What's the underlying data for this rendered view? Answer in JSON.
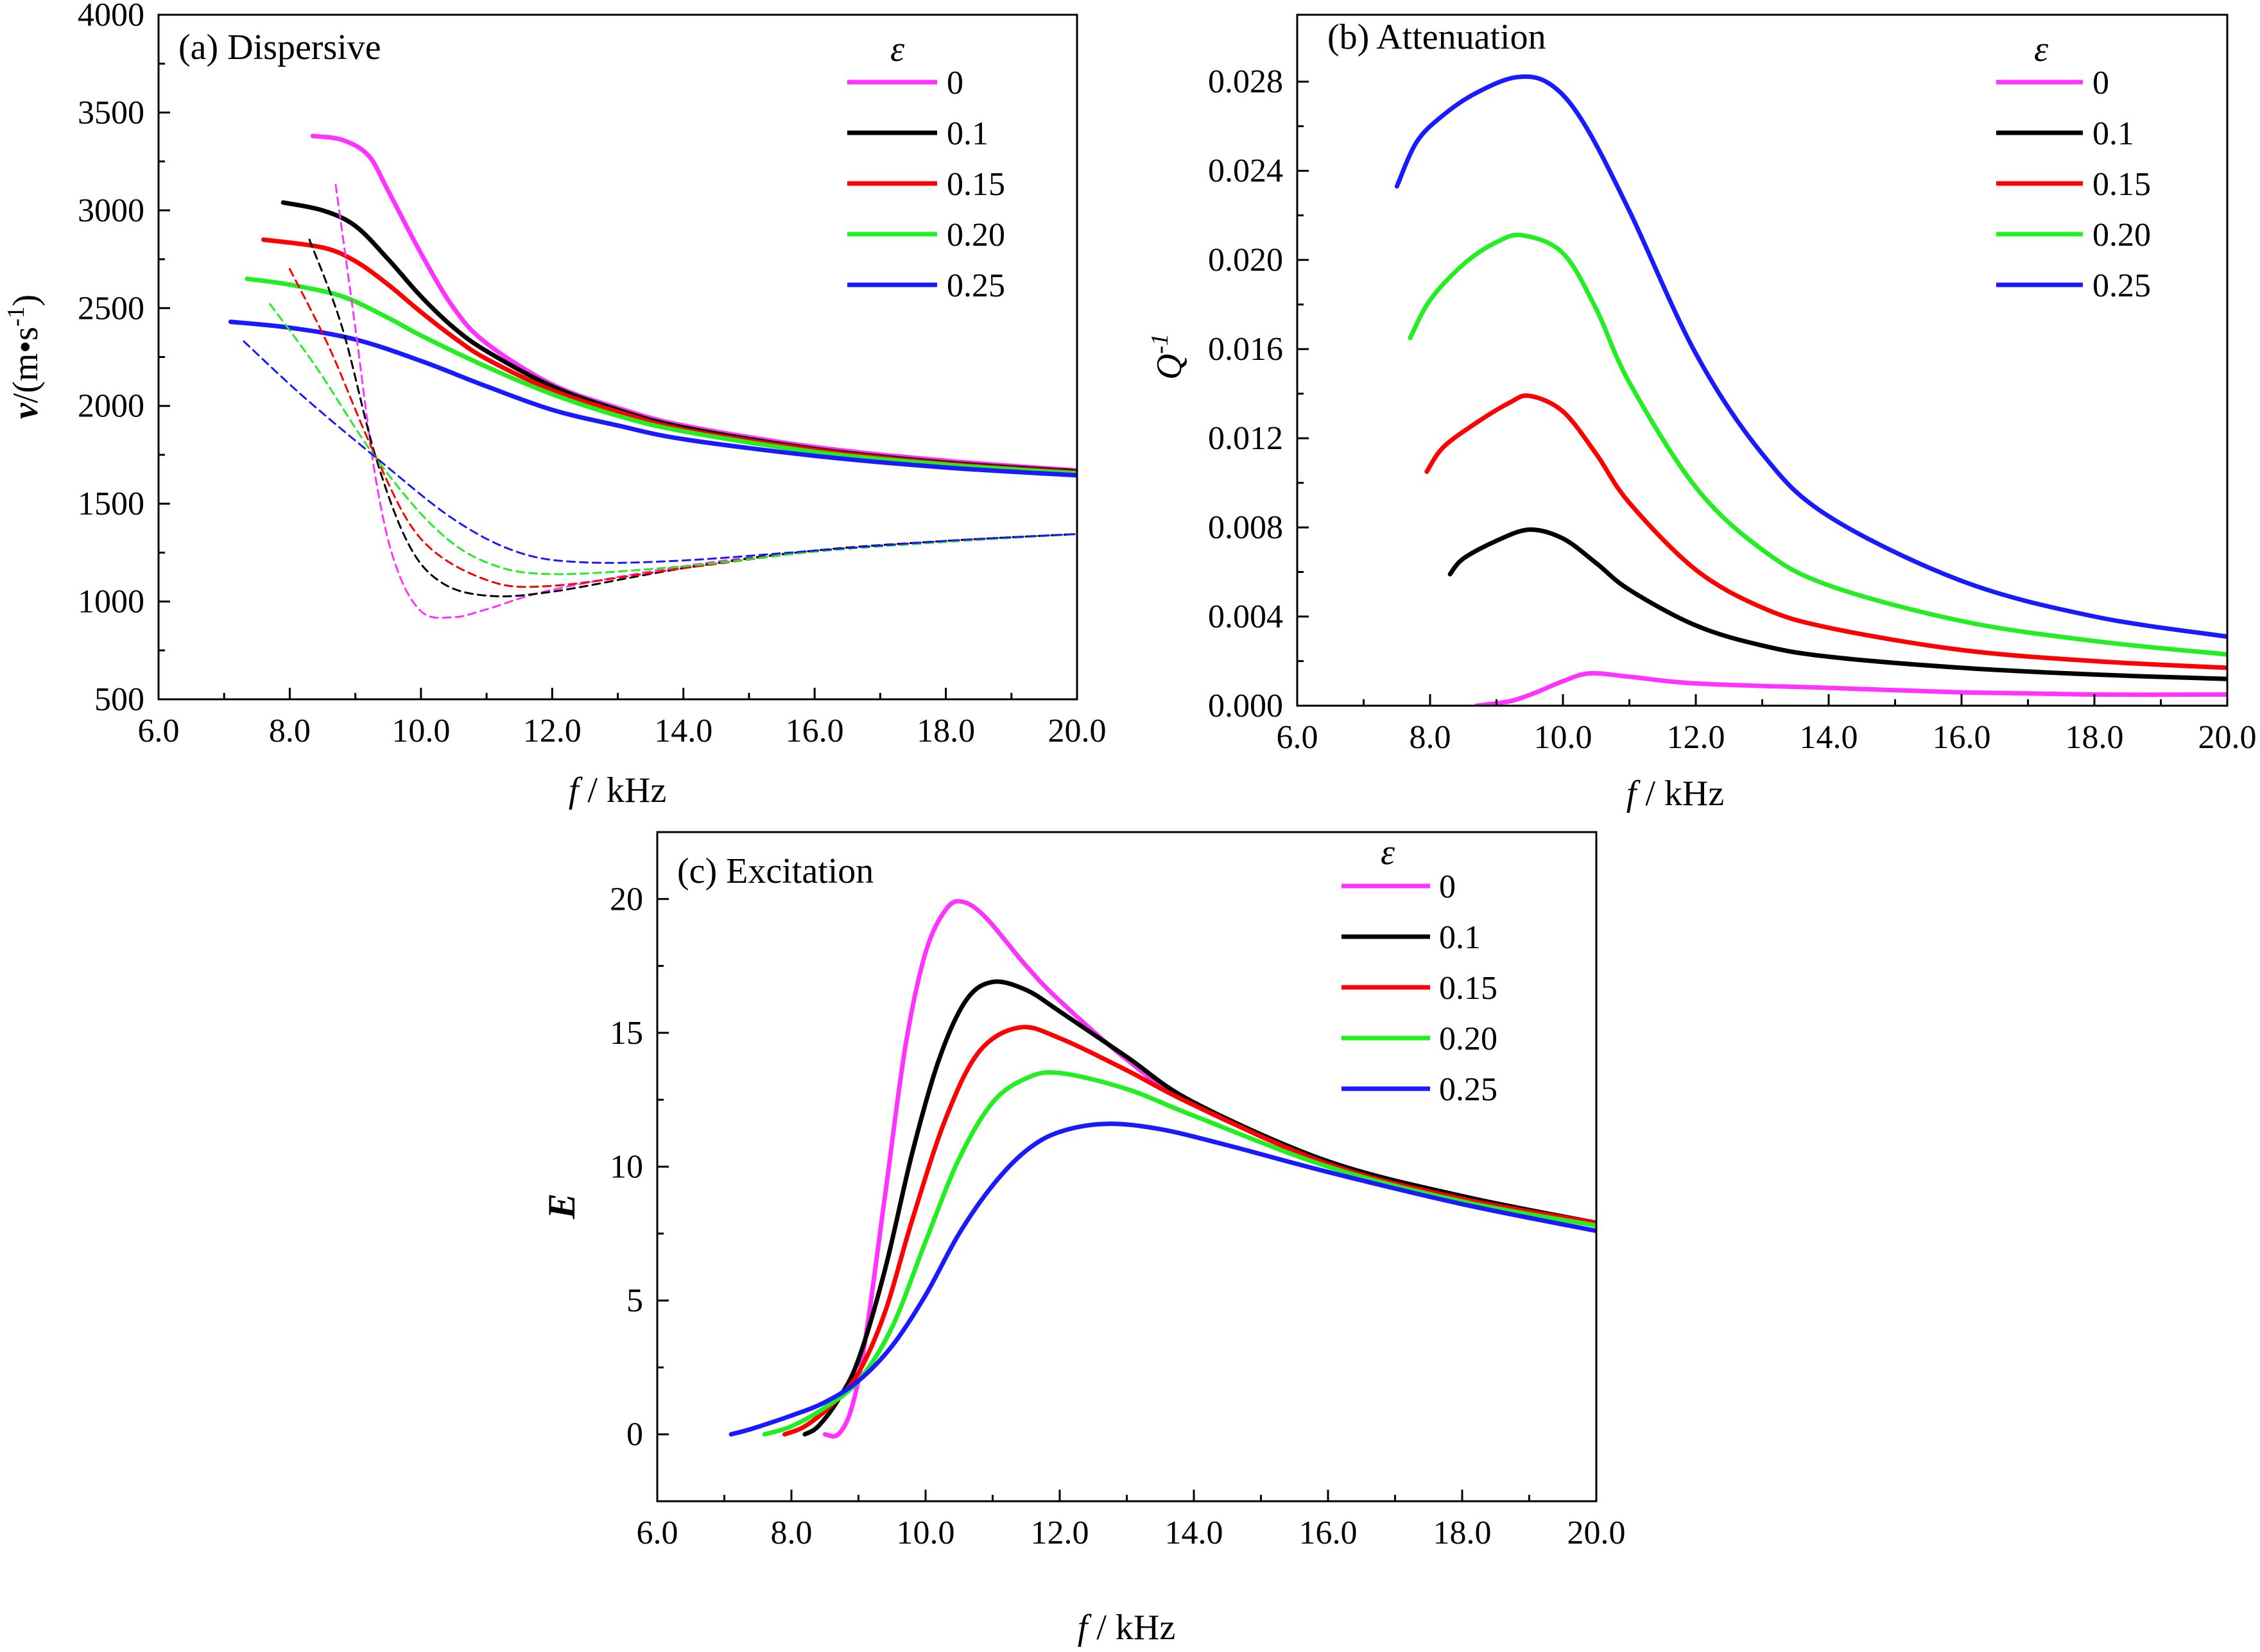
{
  "legend_title": "ε",
  "colors": {
    "0": "#ff33ff",
    "0.1": "#000000",
    "0.15": "#ff0000",
    "0.20": "#22ee22",
    "0.25": "#1a1aff"
  },
  "chart_data": [
    {
      "id": "a",
      "type": "line",
      "title": "(a) Dispersive",
      "xlabel_var": "f",
      "xlabel_unit": " / kHz",
      "ylabel": "v/(m·s-1)",
      "xlim": [
        6,
        20
      ],
      "ylim": [
        500,
        4000
      ],
      "xticks": [
        6,
        8,
        10,
        12,
        14,
        16,
        18,
        20
      ],
      "xtick_labels": [
        "6.0",
        "8.0",
        "10.0",
        "12.0",
        "14.0",
        "16.0",
        "18.0",
        "20.0"
      ],
      "yticks": [
        500,
        1000,
        1500,
        2000,
        2500,
        3000,
        3500,
        4000
      ],
      "ytick_labels": [
        "500",
        "1000",
        "1500",
        "2000",
        "2500",
        "3000",
        "3500",
        "4000"
      ],
      "legend": "top-right",
      "series": [
        {
          "name": "0",
          "style": "solid",
          "x": [
            8.35,
            8.8,
            9.2,
            9.5,
            10.0,
            10.5,
            11.0,
            12.0,
            13.0,
            14.0,
            16.0,
            18.0,
            20.0
          ],
          "y": [
            3380,
            3360,
            3280,
            3100,
            2780,
            2500,
            2320,
            2110,
            1990,
            1900,
            1790,
            1720,
            1670
          ]
        },
        {
          "name": "0.1",
          "style": "solid",
          "x": [
            7.9,
            8.5,
            9.0,
            9.5,
            10.0,
            10.5,
            11.0,
            12.0,
            13.0,
            14.0,
            16.0,
            18.0,
            20.0
          ],
          "y": [
            3040,
            3000,
            2920,
            2750,
            2560,
            2400,
            2280,
            2100,
            1980,
            1890,
            1780,
            1710,
            1665
          ]
        },
        {
          "name": "0.15",
          "style": "solid",
          "x": [
            7.6,
            8.5,
            9.0,
            9.5,
            10.0,
            10.5,
            11.0,
            12.0,
            13.0,
            14.0,
            16.0,
            18.0,
            20.0
          ],
          "y": [
            2850,
            2810,
            2740,
            2620,
            2480,
            2350,
            2240,
            2080,
            1970,
            1880,
            1775,
            1705,
            1660
          ]
        },
        {
          "name": "0.20",
          "style": "solid",
          "x": [
            7.35,
            8.0,
            8.8,
            9.5,
            10.0,
            11.0,
            12.0,
            13.0,
            14.0,
            16.0,
            18.0,
            20.0
          ],
          "y": [
            2650,
            2620,
            2560,
            2450,
            2360,
            2200,
            2060,
            1950,
            1870,
            1765,
            1700,
            1655
          ]
        },
        {
          "name": "0.25",
          "style": "solid",
          "x": [
            7.1,
            8.0,
            9.0,
            10.0,
            11.0,
            12.0,
            13.0,
            14.0,
            16.0,
            18.0,
            20.0
          ],
          "y": [
            2430,
            2400,
            2340,
            2230,
            2100,
            1980,
            1900,
            1830,
            1745,
            1685,
            1645
          ]
        },
        {
          "name": "0",
          "style": "dashed",
          "x": [
            8.7,
            9.0,
            9.3,
            9.6,
            10.0,
            10.5,
            11.0,
            12.0,
            14.0,
            16.0,
            18.0,
            20.0
          ],
          "y": [
            3130,
            2400,
            1650,
            1200,
            950,
            920,
            960,
            1060,
            1180,
            1260,
            1310,
            1345
          ]
        },
        {
          "name": "0.1",
          "style": "dashed",
          "x": [
            8.3,
            8.8,
            9.3,
            9.8,
            10.3,
            11.0,
            12.0,
            14.0,
            16.0,
            18.0,
            20.0
          ],
          "y": [
            2850,
            2400,
            1750,
            1300,
            1100,
            1030,
            1050,
            1170,
            1260,
            1310,
            1345
          ]
        },
        {
          "name": "0.15",
          "style": "dashed",
          "x": [
            8.0,
            8.6,
            9.3,
            10.0,
            11.0,
            12.0,
            14.0,
            16.0,
            18.0,
            20.0
          ],
          "y": [
            2700,
            2300,
            1750,
            1320,
            1110,
            1080,
            1170,
            1255,
            1305,
            1345
          ]
        },
        {
          "name": "0.20",
          "style": "dashed",
          "x": [
            7.7,
            8.4,
            9.3,
            10.2,
            11.0,
            12.0,
            14.0,
            16.0,
            18.0,
            20.0
          ],
          "y": [
            2520,
            2200,
            1740,
            1380,
            1200,
            1140,
            1180,
            1255,
            1305,
            1345
          ]
        },
        {
          "name": "0.25",
          "style": "dashed",
          "x": [
            7.3,
            8.2,
            9.3,
            10.5,
            11.5,
            12.5,
            14.0,
            16.0,
            18.0,
            20.0
          ],
          "y": [
            2330,
            2050,
            1740,
            1420,
            1250,
            1200,
            1210,
            1260,
            1310,
            1345
          ]
        }
      ]
    },
    {
      "id": "b",
      "type": "line",
      "title": "(b) Attenuation",
      "xlabel_var": "f",
      "xlabel_unit": " / kHz",
      "ylabel": "Q-1",
      "xlim": [
        6,
        20
      ],
      "ylim": [
        0,
        0.031
      ],
      "xticks": [
        6,
        8,
        10,
        12,
        14,
        16,
        18,
        20
      ],
      "xtick_labels": [
        "6.0",
        "8.0",
        "10.0",
        "12.0",
        "14.0",
        "16.0",
        "18.0",
        "20.0"
      ],
      "yticks": [
        0,
        0.004,
        0.008,
        0.012,
        0.016,
        0.02,
        0.024,
        0.028
      ],
      "ytick_labels": [
        "0.000",
        "0.004",
        "0.008",
        "0.012",
        "0.016",
        "0.020",
        "0.024",
        "0.028"
      ],
      "legend": "top-right",
      "series": [
        {
          "name": "0",
          "style": "solid",
          "x": [
            8.7,
            9.2,
            9.6,
            10.0,
            10.4,
            11.0,
            12.0,
            14.0,
            16.0,
            18.0,
            20.0
          ],
          "y": [
            0.0,
            0.0002,
            0.0006,
            0.0011,
            0.00145,
            0.0013,
            0.001,
            0.0008,
            0.0006,
            0.0005,
            0.0005
          ]
        },
        {
          "name": "0.1",
          "style": "solid",
          "x": [
            8.3,
            8.5,
            9.0,
            9.5,
            10.0,
            10.5,
            11.0,
            12.0,
            13.0,
            14.0,
            16.0,
            18.0,
            20.0
          ],
          "y": [
            0.0059,
            0.0066,
            0.0074,
            0.0079,
            0.0075,
            0.0064,
            0.0052,
            0.0036,
            0.0027,
            0.0022,
            0.0017,
            0.0014,
            0.0012
          ]
        },
        {
          "name": "0.15",
          "style": "solid",
          "x": [
            7.95,
            8.2,
            8.7,
            9.2,
            9.5,
            10.0,
            10.5,
            11.0,
            12.0,
            13.0,
            14.0,
            16.0,
            18.0,
            20.0
          ],
          "y": [
            0.0105,
            0.0116,
            0.0127,
            0.0136,
            0.0139,
            0.0132,
            0.0113,
            0.0091,
            0.0061,
            0.0044,
            0.0035,
            0.0025,
            0.002,
            0.0017
          ]
        },
        {
          "name": "0.20",
          "style": "solid",
          "x": [
            7.7,
            8.0,
            8.5,
            9.0,
            9.4,
            10.0,
            10.5,
            11.0,
            12.0,
            13.0,
            14.0,
            16.0,
            18.0,
            20.0
          ],
          "y": [
            0.0165,
            0.0182,
            0.0198,
            0.0208,
            0.0211,
            0.0203,
            0.0178,
            0.0145,
            0.0098,
            0.007,
            0.0054,
            0.0038,
            0.0029,
            0.0023
          ]
        },
        {
          "name": "0.25",
          "style": "solid",
          "x": [
            7.5,
            7.8,
            8.2,
            8.7,
            9.3,
            9.8,
            10.3,
            11.0,
            12.0,
            13.0,
            14.0,
            16.0,
            18.0,
            20.0
          ],
          "y": [
            0.0233,
            0.0253,
            0.0265,
            0.0275,
            0.0282,
            0.0279,
            0.0262,
            0.0222,
            0.0158,
            0.0113,
            0.0085,
            0.0056,
            0.004,
            0.0031
          ]
        }
      ]
    },
    {
      "id": "c",
      "type": "line",
      "title": "(c) Excitation",
      "xlabel_var": "f",
      "xlabel_unit": " / kHz",
      "ylabel": "E",
      "xlim": [
        6,
        20
      ],
      "ylim": [
        -2.5,
        22.5
      ],
      "xticks": [
        6,
        8,
        10,
        12,
        14,
        16,
        18,
        20
      ],
      "xtick_labels": [
        "6.0",
        "8.0",
        "10.0",
        "12.0",
        "14.0",
        "16.0",
        "18.0",
        "20.0"
      ],
      "yticks": [
        0,
        5,
        10,
        15,
        20
      ],
      "ytick_labels": [
        "0",
        "5",
        "10",
        "15",
        "20"
      ],
      "legend": "top-right",
      "series": [
        {
          "name": "0",
          "style": "solid",
          "x": [
            8.5,
            8.7,
            8.9,
            9.1,
            9.4,
            9.7,
            10.0,
            10.3,
            10.55,
            10.9,
            11.5,
            12.0,
            13.0,
            14.0,
            16.0,
            18.0,
            20.0
          ],
          "y": [
            0,
            0,
            1.0,
            3.5,
            9.0,
            14.5,
            18.0,
            19.6,
            19.9,
            19.3,
            17.5,
            16.2,
            14.0,
            12.3,
            10.2,
            8.9,
            7.9
          ]
        },
        {
          "name": "0.1",
          "style": "solid",
          "x": [
            8.2,
            8.4,
            8.7,
            9.0,
            9.4,
            9.8,
            10.2,
            10.6,
            11.0,
            11.5,
            12.0,
            13.0,
            14.0,
            16.0,
            18.0,
            20.0
          ],
          "y": [
            0,
            0.3,
            1.3,
            2.8,
            6.2,
            10.5,
            14.0,
            16.2,
            16.9,
            16.6,
            15.8,
            14.1,
            12.4,
            10.2,
            8.9,
            7.9
          ]
        },
        {
          "name": "0.15",
          "style": "solid",
          "x": [
            7.9,
            8.2,
            8.6,
            9.0,
            9.4,
            9.8,
            10.3,
            10.8,
            11.4,
            12.0,
            13.0,
            14.0,
            16.0,
            18.0,
            20.0
          ],
          "y": [
            0,
            0.3,
            1.1,
            2.3,
            4.6,
            8.0,
            11.8,
            14.3,
            15.2,
            14.8,
            13.6,
            12.3,
            10.1,
            8.8,
            7.9
          ]
        },
        {
          "name": "0.20",
          "style": "solid",
          "x": [
            7.6,
            8.0,
            8.5,
            9.0,
            9.5,
            10.0,
            10.5,
            11.0,
            11.5,
            12.0,
            13.0,
            14.0,
            16.0,
            18.0,
            20.0
          ],
          "y": [
            0,
            0.3,
            1.0,
            2.0,
            4.0,
            7.2,
            10.3,
            12.4,
            13.3,
            13.5,
            12.9,
            11.9,
            10.0,
            8.7,
            7.8
          ]
        },
        {
          "name": "0.25",
          "style": "solid",
          "x": [
            7.1,
            7.4,
            8.0,
            8.5,
            9.0,
            9.5,
            10.0,
            10.5,
            11.0,
            11.5,
            12.0,
            12.7,
            13.5,
            14.5,
            16.0,
            18.0,
            20.0
          ],
          "y": [
            0,
            0.2,
            0.7,
            1.2,
            2.0,
            3.3,
            5.2,
            7.5,
            9.3,
            10.6,
            11.3,
            11.6,
            11.4,
            10.8,
            9.8,
            8.6,
            7.6
          ]
        }
      ]
    }
  ]
}
